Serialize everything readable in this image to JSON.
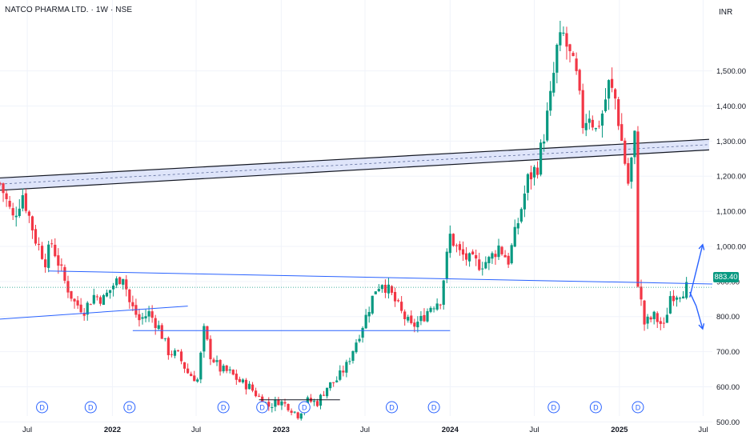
{
  "header": {
    "symbol_title": "NATCO PHARMA LTD. · 1W · NSE",
    "currency": "INR"
  },
  "last_price_label": "883.40",
  "colors": {
    "up": "#089981",
    "down": "#f23645",
    "drawing": "#2962ff",
    "channel_fill": "#c5cff5",
    "grid": "#f0f3fa",
    "axis_text": "#131722"
  },
  "chart_data": {
    "type": "candlestick",
    "y_axis": {
      "range": [
        500,
        1700
      ],
      "ticks": [
        {
          "v": 500,
          "label": "500.00"
        },
        {
          "v": 600,
          "label": "600.00"
        },
        {
          "v": 700,
          "label": "700.00"
        },
        {
          "v": 800,
          "label": "800.00"
        },
        {
          "v": 900,
          "label": "900.00"
        },
        {
          "v": 1000,
          "label": "1,000.00"
        },
        {
          "v": 1100,
          "label": "1,100.00"
        },
        {
          "v": 1200,
          "label": "1,200.00"
        },
        {
          "v": 1300,
          "label": "1,300.00"
        },
        {
          "v": 1400,
          "label": "1,400.00"
        },
        {
          "v": 1500,
          "label": "1,500.00"
        }
      ]
    },
    "x_axis": {
      "range": [
        "2021-05-03",
        "2025-07-21"
      ],
      "ticks": [
        {
          "date": "2021-07-01",
          "label": "Jul",
          "bold": false
        },
        {
          "date": "2022-01-01",
          "label": "2022",
          "bold": true
        },
        {
          "date": "2022-07-01",
          "label": "Jul",
          "bold": false
        },
        {
          "date": "2023-01-01",
          "label": "2023",
          "bold": true
        },
        {
          "date": "2023-07-01",
          "label": "Jul",
          "bold": false
        },
        {
          "date": "2024-01-01",
          "label": "2024",
          "bold": true
        },
        {
          "date": "2024-07-01",
          "label": "Jul",
          "bold": false
        },
        {
          "date": "2025-01-01",
          "label": "2025",
          "bold": true
        },
        {
          "date": "2025-07-01",
          "label": "Jul",
          "bold": false
        }
      ]
    },
    "last_price": 883.4,
    "price_path": [
      [
        "2021-05-03",
        1180
      ],
      [
        "2021-05-31",
        1080
      ],
      [
        "2021-06-21",
        1150
      ],
      [
        "2021-07-19",
        1020
      ],
      [
        "2021-08-09",
        960
      ],
      [
        "2021-08-23",
        1010
      ],
      [
        "2021-09-20",
        900
      ],
      [
        "2021-10-11",
        840
      ],
      [
        "2021-11-01",
        820
      ],
      [
        "2021-11-22",
        860
      ],
      [
        "2021-12-13",
        850
      ],
      [
        "2022-01-03",
        890
      ],
      [
        "2022-01-24",
        920
      ],
      [
        "2022-02-07",
        840
      ],
      [
        "2022-02-28",
        790
      ],
      [
        "2022-03-21",
        810
      ],
      [
        "2022-04-11",
        770
      ],
      [
        "2022-05-02",
        700
      ],
      [
        "2022-05-23",
        690
      ],
      [
        "2022-06-13",
        640
      ],
      [
        "2022-07-04",
        620
      ],
      [
        "2022-07-18",
        760
      ],
      [
        "2022-08-01",
        690
      ],
      [
        "2022-08-22",
        650
      ],
      [
        "2022-09-12",
        640
      ],
      [
        "2022-10-03",
        615
      ],
      [
        "2022-10-24",
        600
      ],
      [
        "2022-11-14",
        570
      ],
      [
        "2022-12-05",
        545
      ],
      [
        "2022-12-26",
        560
      ],
      [
        "2023-01-16",
        545
      ],
      [
        "2023-02-06",
        520
      ],
      [
        "2023-02-27",
        560
      ],
      [
        "2023-03-20",
        555
      ],
      [
        "2023-04-10",
        600
      ],
      [
        "2023-05-01",
        620
      ],
      [
        "2023-05-22",
        660
      ],
      [
        "2023-06-12",
        730
      ],
      [
        "2023-07-03",
        800
      ],
      [
        "2023-07-24",
        880
      ],
      [
        "2023-08-07",
        900
      ],
      [
        "2023-08-28",
        860
      ],
      [
        "2023-09-18",
        810
      ],
      [
        "2023-10-09",
        770
      ],
      [
        "2023-10-30",
        790
      ],
      [
        "2023-11-20",
        830
      ],
      [
        "2023-12-11",
        850
      ],
      [
        "2024-01-01",
        1030
      ],
      [
        "2024-01-22",
        980
      ],
      [
        "2024-02-12",
        960
      ],
      [
        "2024-03-04",
        950
      ],
      [
        "2024-03-25",
        960
      ],
      [
        "2024-04-15",
        1000
      ],
      [
        "2024-05-06",
        960
      ],
      [
        "2024-05-27",
        1070
      ],
      [
        "2024-06-17",
        1190
      ],
      [
        "2024-07-08",
        1230
      ],
      [
        "2024-07-22",
        1320
      ],
      [
        "2024-08-05",
        1420
      ],
      [
        "2024-08-19",
        1560
      ],
      [
        "2024-09-02",
        1600
      ],
      [
        "2024-09-16",
        1540
      ],
      [
        "2024-09-30",
        1480
      ],
      [
        "2024-10-14",
        1350
      ],
      [
        "2024-10-28",
        1380
      ],
      [
        "2024-11-11",
        1330
      ],
      [
        "2024-11-25",
        1380
      ],
      [
        "2024-12-09",
        1460
      ],
      [
        "2024-12-23",
        1420
      ],
      [
        "2025-01-06",
        1300
      ],
      [
        "2025-01-20",
        1180
      ],
      [
        "2025-02-03",
        1310
      ],
      [
        "2025-02-10",
        900
      ],
      [
        "2025-02-24",
        780
      ],
      [
        "2025-03-17",
        800
      ],
      [
        "2025-04-07",
        770
      ],
      [
        "2025-04-21",
        860
      ],
      [
        "2025-05-12",
        870
      ],
      [
        "2025-05-26",
        883
      ]
    ],
    "dividend_markers": [
      "2021-08-02",
      "2021-11-15",
      "2022-02-07",
      "2022-08-29",
      "2022-11-21",
      "2023-02-20",
      "2023-08-28",
      "2023-11-27",
      "2024-08-12",
      "2024-11-11",
      "2025-02-10"
    ],
    "dividend_label": "D",
    "drawings": {
      "channel_upper": [
        [
          "2021-05-03",
          1195
        ],
        [
          "2025-07-14",
          1305
        ]
      ],
      "channel_lower": [
        [
          "2021-05-03",
          1160
        ],
        [
          "2025-07-14",
          1275
        ]
      ],
      "trendline_resistance": [
        [
          "2021-08-16",
          930
        ],
        [
          "2025-07-21",
          893
        ]
      ],
      "trendline_lower_left": [
        [
          "2021-05-03",
          793
        ],
        [
          "2022-06-13",
          830
        ]
      ],
      "support_mid": [
        [
          "2022-02-14",
          760
        ],
        [
          "2024-01-01",
          760
        ]
      ],
      "support_bottom": [
        [
          "2022-11-14",
          563
        ],
        [
          "2023-05-08",
          563
        ]
      ],
      "forecast_up": [
        [
          "2025-06-02",
          855
        ],
        [
          "2025-06-16",
          930
        ],
        [
          "2025-06-30",
          1005
        ]
      ],
      "forecast_down": [
        [
          "2025-06-02",
          870
        ],
        [
          "2025-06-16",
          830
        ],
        [
          "2025-06-30",
          765
        ]
      ]
    }
  }
}
